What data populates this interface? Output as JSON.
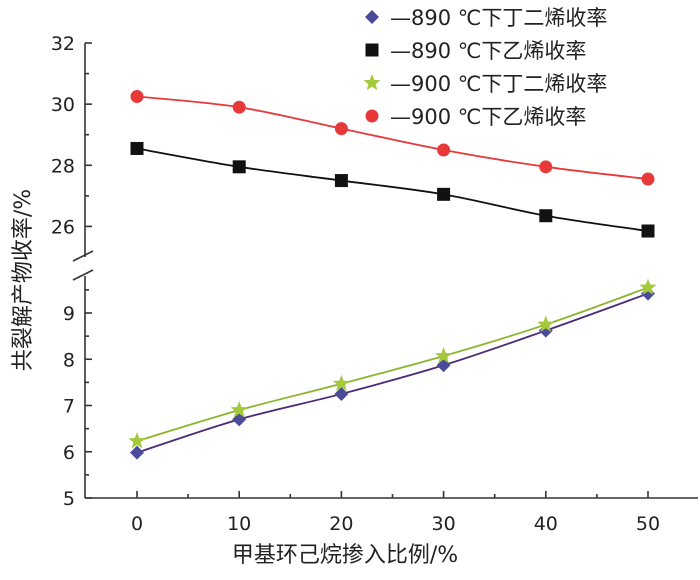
{
  "chart_data": {
    "type": "line",
    "xlabel": "甲基环己烷掺入比例/%",
    "ylabel": "共裂解产物收率/%",
    "x": [
      0,
      10,
      20,
      30,
      40,
      50
    ],
    "x_ticks": [
      "0",
      "10",
      "20",
      "30",
      "40",
      "50"
    ],
    "xlim": [
      -5,
      55
    ],
    "y_axis_broken": true,
    "upper_ylim": [
      25,
      32
    ],
    "upper_yticks": [
      "26",
      "28",
      "30",
      "32"
    ],
    "lower_ylim": [
      5,
      9.8
    ],
    "lower_yticks": [
      "5",
      "6",
      "7",
      "8",
      "9"
    ],
    "legend_position": "top-right",
    "series": [
      {
        "name": "—890 ℃下丁二烯收率",
        "marker": "diamond",
        "color": "#4b4c99",
        "line_color": "#4a2a7a",
        "segment": "lower",
        "values": [
          5.98,
          6.7,
          7.25,
          7.87,
          8.62,
          9.42
        ]
      },
      {
        "name": "—890 ℃下乙烯收率",
        "marker": "square",
        "color": "#111111",
        "line_color": "#111111",
        "segment": "upper",
        "values": [
          28.55,
          27.95,
          27.5,
          27.05,
          26.35,
          25.85
        ]
      },
      {
        "name": "—900 ℃下丁二烯收率",
        "marker": "star",
        "color": "#a4c93a",
        "line_color": "#8cb52e",
        "segment": "lower",
        "values": [
          6.23,
          6.9,
          7.47,
          8.07,
          8.75,
          9.55
        ]
      },
      {
        "name": "—900 ℃下乙烯收率",
        "marker": "circle",
        "color": "#e8393a",
        "line_color": "#e8393a",
        "segment": "upper",
        "values": [
          30.25,
          29.9,
          29.2,
          28.5,
          27.95,
          27.55
        ]
      }
    ]
  }
}
